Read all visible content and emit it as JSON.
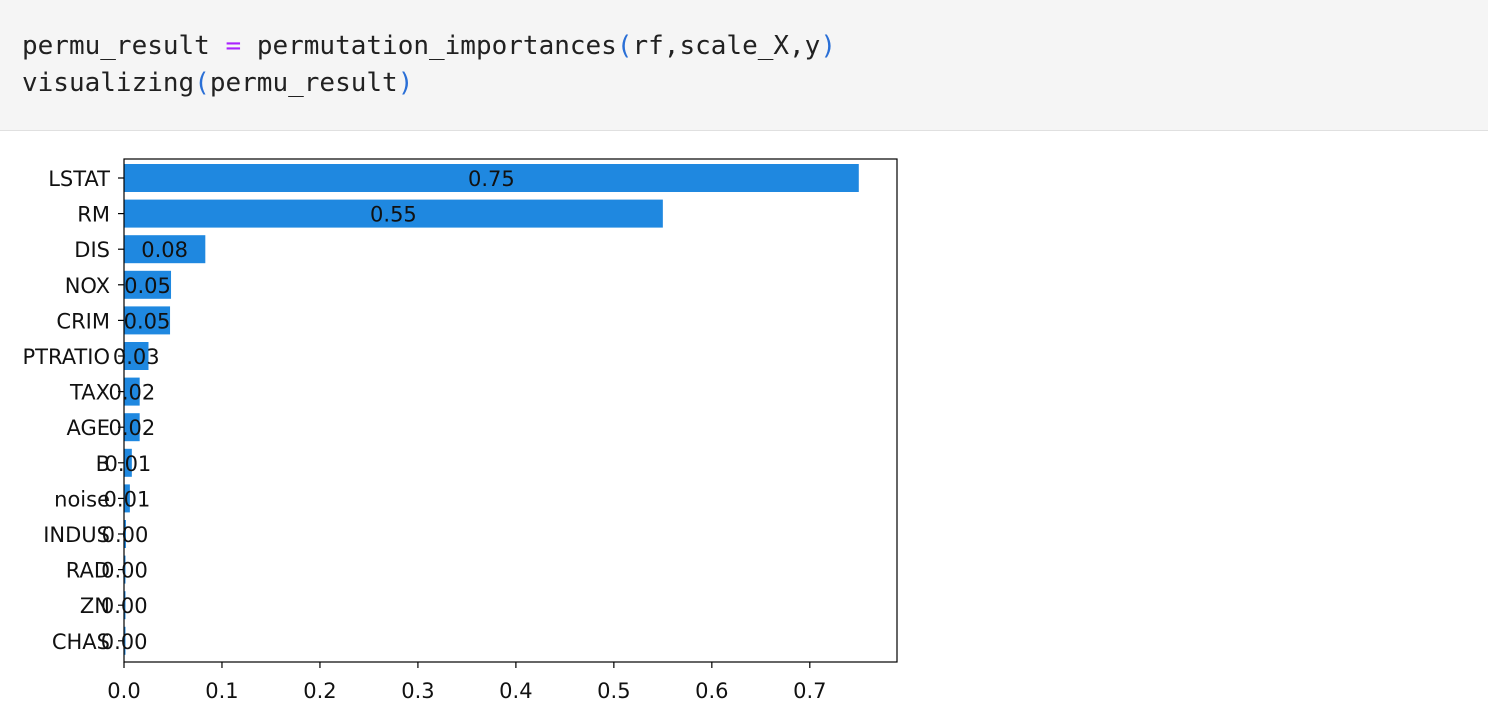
{
  "code": {
    "line1": {
      "lhs": "permu_result",
      "op": "=",
      "func": "permutation_importances",
      "open": "(",
      "args": "rf,scale_X,y",
      "close": ")"
    },
    "line2": {
      "func": "visualizing",
      "open": "(",
      "args": "permu_result",
      "close": ")"
    }
  },
  "colors": {
    "bar": "#1f88e0",
    "axis": "#000000"
  },
  "chart_data": {
    "type": "bar",
    "orientation": "horizontal",
    "categories": [
      "LSTAT",
      "RM",
      "DIS",
      "NOX",
      "CRIM",
      "PTRATIO",
      "TAX",
      "AGE",
      "B",
      "noise",
      "INDUS",
      "RAD",
      "ZN",
      "CHAS"
    ],
    "values": [
      0.75,
      0.55,
      0.083,
      0.048,
      0.047,
      0.025,
      0.016,
      0.016,
      0.008,
      0.006,
      0.002,
      0.001,
      0.0005,
      0.0003
    ],
    "labels": [
      "0.75",
      "0.55",
      "0.08",
      "0.05",
      "0.05",
      "0.03",
      "0.02",
      "0.02",
      "0.01",
      "0.01",
      "0.00",
      "0.00",
      "0.00",
      "0.00"
    ],
    "xticks": [
      "0.0",
      "0.1",
      "0.2",
      "0.3",
      "0.4",
      "0.5",
      "0.6",
      "0.7"
    ],
    "xlim": [
      0,
      0.789
    ],
    "grid": false
  }
}
